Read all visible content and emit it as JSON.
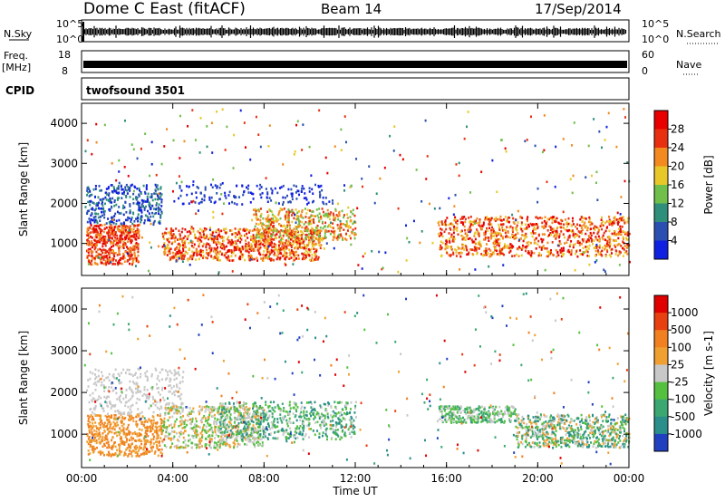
{
  "header": {
    "title": "Dome C East (fitACF)",
    "beam": "Beam 14",
    "date": "17/Sep/2014"
  },
  "panels": {
    "nsky_label": "N.Sky",
    "nsearch_label": "N.Search",
    "freq_label_top": "Freq.",
    "freq_label_unit": "[MHz]",
    "nave_label": "Nave",
    "cpid_label": "CPID",
    "cpid_value": "twofsound 3501",
    "noise_ticks": [
      "10^5",
      "10^0"
    ],
    "freq_ticks": [
      "18",
      "8"
    ],
    "nave_ticks": [
      "60",
      "0"
    ]
  },
  "chart_data": [
    {
      "type": "heatmap",
      "name": "power",
      "ylabel": "Slant Range [km]",
      "xlabel": "",
      "x_ticks": [
        "00:00",
        "04:00",
        "08:00",
        "12:00",
        "16:00",
        "20:00",
        "00:00"
      ],
      "y_ticks": [
        "1000",
        "2000",
        "3000",
        "4000"
      ],
      "ylim": [
        200,
        4500
      ],
      "colorbar_label": "Power [dB]",
      "colorbar_ticks": [
        "4",
        "8",
        "12",
        "16",
        "20",
        "24",
        "28"
      ],
      "colors": [
        "#1020e0",
        "#2a4fb0",
        "#2f8f7a",
        "#6fbf4a",
        "#e8c828",
        "#f28a20",
        "#e83010",
        "#e80000"
      ]
    },
    {
      "type": "heatmap",
      "name": "velocity",
      "ylabel": "Slant Range [km]",
      "xlabel": "Time UT",
      "x_ticks": [
        "00:00",
        "04:00",
        "08:00",
        "12:00",
        "16:00",
        "20:00",
        "00:00"
      ],
      "y_ticks": [
        "1000",
        "2000",
        "3000",
        "4000"
      ],
      "ylim": [
        200,
        4500
      ],
      "colorbar_label": "Velocity [m s-1]",
      "colorbar_ticks": [
        "1000",
        "500",
        "100",
        "25",
        "-25",
        "-100",
        "-500",
        "-1000"
      ],
      "colors": [
        "#2040c0",
        "#2a8f8a",
        "#3aa870",
        "#55c040",
        "#c8c8c8",
        "#f0a030",
        "#f08020",
        "#e84010",
        "#e00000"
      ]
    }
  ]
}
